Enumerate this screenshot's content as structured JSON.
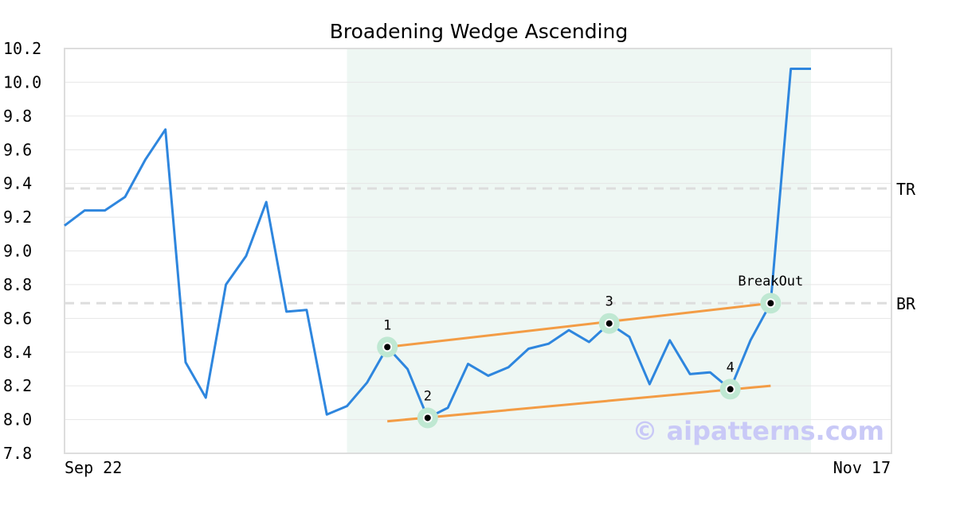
{
  "title": "Broadening Wedge Ascending",
  "watermark": "© aipatterns.com",
  "colors": {
    "price_line": "#2e86de",
    "trend_lines": "#f39c45",
    "pattern_zone": "#eef7f3",
    "pivot_halo": "#bfe8d2",
    "ref_lines": "#dddddd",
    "grid": "#e6e6e6",
    "frame": "#dddddd"
  },
  "chart_data": {
    "type": "line",
    "title": "Broadening Wedge Ascending",
    "x_start_label": "Sep 22",
    "x_end_label": "Nov 17",
    "ylim": [
      7.8,
      10.2
    ],
    "yticks": [
      "7.8",
      "8.0",
      "8.2",
      "8.4",
      "8.6",
      "8.8",
      "9.0",
      "9.2",
      "9.4",
      "9.6",
      "9.8",
      "10.0",
      "10.2"
    ],
    "grid": true,
    "series": [
      {
        "values": [
          9.15,
          9.24,
          9.24,
          9.32,
          9.54,
          9.72,
          8.34,
          8.13,
          8.8,
          8.97,
          9.29,
          8.64,
          8.65,
          8.03,
          8.08,
          8.22,
          8.43,
          8.3,
          8.01,
          8.07,
          8.33,
          8.26,
          8.31,
          8.42,
          8.45,
          8.53,
          8.46,
          8.57,
          8.49,
          8.21,
          8.47,
          8.27,
          8.28,
          8.18,
          8.47,
          8.69,
          10.08,
          10.08
        ]
      }
    ],
    "pattern_zone": {
      "start_index": 14,
      "end_index": 37
    },
    "reference_lines": [
      {
        "label": "TR",
        "value": 9.37
      },
      {
        "label": "BR",
        "value": 8.69
      }
    ],
    "trend_lines": [
      {
        "from": {
          "index": 16,
          "value": 8.43
        },
        "to": {
          "index": 35,
          "value": 8.69
        }
      },
      {
        "from": {
          "index": 16,
          "value": 7.99
        },
        "to": {
          "index": 35,
          "value": 8.2
        }
      }
    ],
    "pivots": [
      {
        "label": "1",
        "index": 16,
        "value": 8.43
      },
      {
        "label": "2",
        "index": 18,
        "value": 8.01
      },
      {
        "label": "3",
        "index": 27,
        "value": 8.57
      },
      {
        "label": "4",
        "index": 33,
        "value": 8.18
      },
      {
        "label": "BreakOut",
        "index": 35,
        "value": 8.69
      }
    ]
  }
}
